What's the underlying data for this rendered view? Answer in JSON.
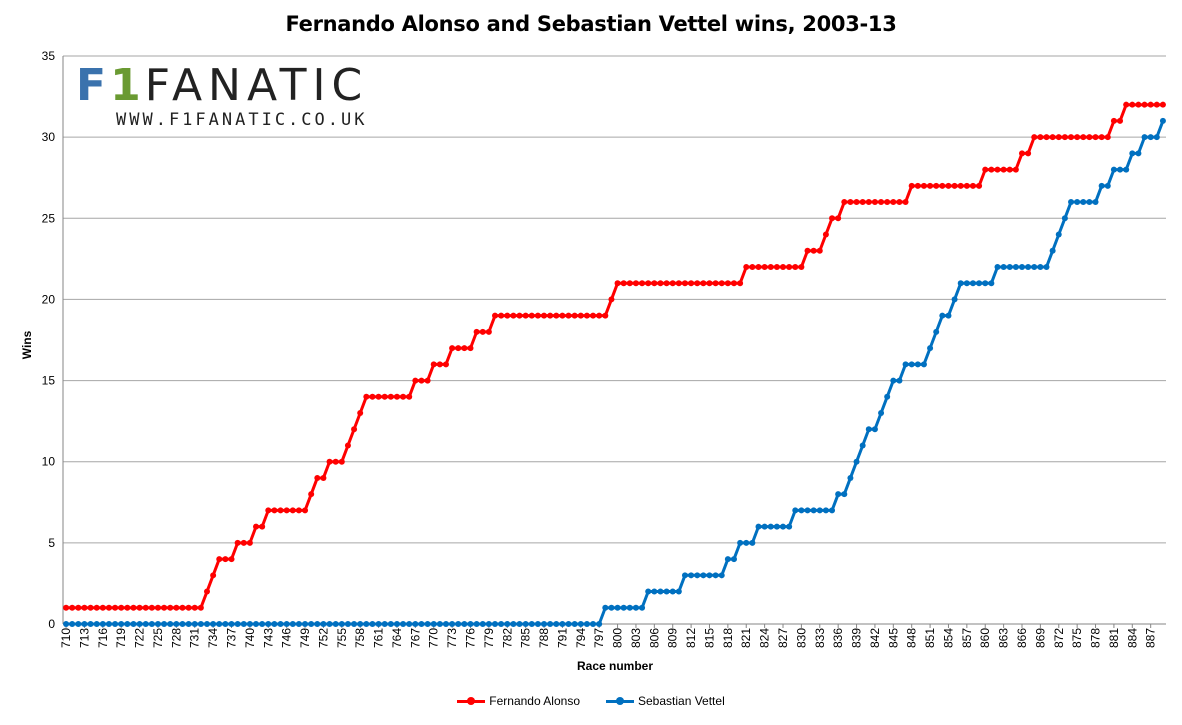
{
  "chart_data": {
    "type": "line",
    "title": "Fernando Alonso and Sebastian Vettel wins, 2003-13",
    "xlabel": "Race number",
    "ylabel": "Wins",
    "ylim": [
      0,
      35
    ],
    "yticks": [
      0,
      5,
      10,
      15,
      20,
      25,
      30,
      35
    ],
    "x_start": 710,
    "x_end": 889,
    "x_tick_labels": [
      "710",
      "713",
      "716",
      "719",
      "722",
      "725",
      "728",
      "731",
      "734",
      "737",
      "740",
      "743",
      "746",
      "749",
      "752",
      "755",
      "758",
      "761",
      "764",
      "767",
      "770",
      "773",
      "776",
      "779",
      "782",
      "785",
      "788",
      "791",
      "794",
      "797",
      "800",
      "803",
      "806",
      "809",
      "812",
      "815",
      "818",
      "821",
      "824",
      "827",
      "830",
      "833",
      "836",
      "839",
      "842",
      "845",
      "848",
      "851",
      "854",
      "857",
      "860",
      "863",
      "866",
      "869",
      "872",
      "875",
      "878",
      "881",
      "884",
      "887"
    ],
    "grid": "horizontal",
    "legend_position": "bottom",
    "series": [
      {
        "name": "Fernando Alonso",
        "color": "#ff0000",
        "steps": [
          [
            710,
            1
          ],
          [
            733,
            2
          ],
          [
            734,
            3
          ],
          [
            735,
            4
          ],
          [
            738,
            5
          ],
          [
            741,
            6
          ],
          [
            743,
            7
          ],
          [
            750,
            8
          ],
          [
            751,
            9
          ],
          [
            753,
            10
          ],
          [
            756,
            11
          ],
          [
            757,
            12
          ],
          [
            758,
            13
          ],
          [
            759,
            14
          ],
          [
            767,
            15
          ],
          [
            770,
            16
          ],
          [
            773,
            17
          ],
          [
            777,
            18
          ],
          [
            780,
            19
          ],
          [
            799,
            20
          ],
          [
            800,
            21
          ],
          [
            821,
            22
          ],
          [
            831,
            23
          ],
          [
            834,
            24
          ],
          [
            835,
            25
          ],
          [
            837,
            26
          ],
          [
            848,
            27
          ],
          [
            860,
            28
          ],
          [
            866,
            29
          ],
          [
            868,
            30
          ],
          [
            881,
            31
          ],
          [
            883,
            32
          ]
        ]
      },
      {
        "name": "Sebastian Vettel",
        "color": "#0070c0",
        "steps": [
          [
            710,
            0
          ],
          [
            798,
            1
          ],
          [
            805,
            2
          ],
          [
            811,
            3
          ],
          [
            818,
            4
          ],
          [
            820,
            5
          ],
          [
            823,
            6
          ],
          [
            829,
            7
          ],
          [
            836,
            8
          ],
          [
            838,
            9
          ],
          [
            839,
            10
          ],
          [
            840,
            11
          ],
          [
            841,
            12
          ],
          [
            843,
            13
          ],
          [
            844,
            14
          ],
          [
            845,
            15
          ],
          [
            847,
            16
          ],
          [
            851,
            17
          ],
          [
            852,
            18
          ],
          [
            853,
            19
          ],
          [
            855,
            20
          ],
          [
            856,
            21
          ],
          [
            862,
            22
          ],
          [
            871,
            23
          ],
          [
            872,
            24
          ],
          [
            873,
            25
          ],
          [
            874,
            26
          ],
          [
            879,
            27
          ],
          [
            881,
            28
          ],
          [
            884,
            29
          ],
          [
            886,
            30
          ],
          [
            889,
            31
          ]
        ]
      }
    ]
  },
  "logo": {
    "f": "F",
    "one": "1",
    "fanatic": "FANATIC",
    "url": "WWW.F1FANATIC.CO.UK"
  }
}
